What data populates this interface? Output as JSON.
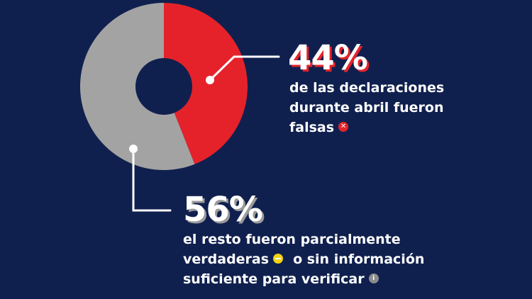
{
  "chart_data": {
    "type": "pie",
    "variant": "donut",
    "categories": [
      "falsas",
      "resto"
    ],
    "values": [
      44,
      56
    ],
    "colors": [
      "#e5222a",
      "#a3a3a3"
    ],
    "start": "top, clockwise"
  },
  "annotations": {
    "false": {
      "value": "44%",
      "lines": [
        "de las declaraciones",
        "durante abril fueron",
        "falsas"
      ],
      "icon": "false-x-icon"
    },
    "rest": {
      "value": "56%",
      "lines": [
        "el resto fueron parcialmente",
        "verdaderas",
        "o sin información",
        "suficiente para verificar"
      ],
      "icons": [
        "partially-true-icon",
        "info-icon"
      ]
    }
  },
  "colors": {
    "background": "#10204e",
    "connector": "#ffffff"
  }
}
